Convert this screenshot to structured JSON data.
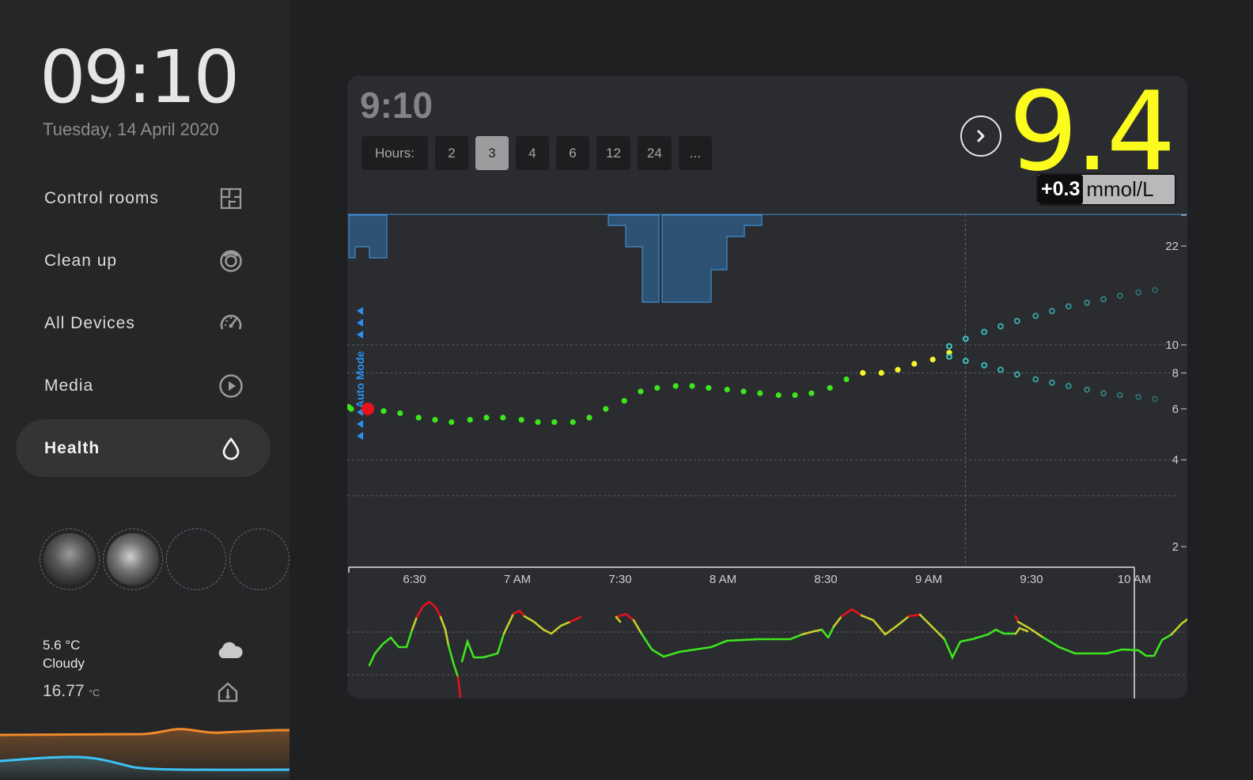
{
  "sidebar": {
    "clock": "09:10",
    "date": "Tuesday, 14 April 2020",
    "items": [
      {
        "label": "Control rooms",
        "icon": "floorplan-icon"
      },
      {
        "label": "Clean up",
        "icon": "robot-vacuum-icon"
      },
      {
        "label": "All Devices",
        "icon": "gauge-icon"
      },
      {
        "label": "Media",
        "icon": "play-icon"
      },
      {
        "label": "Health",
        "icon": "drop-icon",
        "active": true
      }
    ],
    "weather": {
      "temp": "5.6 °C",
      "condition": "Cloudy",
      "indoor": "16.77",
      "indoor_unit": "°C"
    }
  },
  "card": {
    "time": "9:10",
    "hours_label": "Hours:",
    "hours": [
      "2",
      "3",
      "4",
      "6",
      "12",
      "24",
      "..."
    ],
    "selected_hours": "3",
    "value": "9.4",
    "delta": "+0.3",
    "unit": "mmol/L",
    "auto_mode": "Auto Mode",
    "colors": {
      "value": "#fbfb1e",
      "in_range": "#3ee61e",
      "high": "#f5f52a",
      "forecast": "#3ad6d6",
      "basal": "#2d5273",
      "alert": "#e8121b"
    }
  },
  "chart_data": {
    "type": "scatter",
    "y_ticks": [
      "22",
      "10",
      "8",
      "6",
      "4",
      "2"
    ],
    "x_ticks": [
      "6:30",
      "7 AM",
      "7:30",
      "8 AM",
      "8:30",
      "9 AM",
      "9:30",
      "10 AM"
    ],
    "series": [
      {
        "name": "",
        "x": [
          6.1,
          6.18,
          6.27,
          6.35,
          6.43,
          6.52,
          6.6,
          6.68,
          6.77,
          6.85,
          6.93,
          7.02,
          7.1,
          7.18,
          7.27,
          7.35,
          7.43,
          7.52,
          7.6,
          7.68,
          7.77,
          7.85,
          7.93,
          8.02,
          8.1,
          8.18,
          8.27,
          8.35,
          8.43,
          8.52,
          8.6,
          8.68,
          8.77,
          8.85,
          8.93,
          9.02,
          9.1
        ],
        "y": [
          6.0,
          6.1,
          6.1,
          5.9,
          5.8,
          5.6,
          5.5,
          5.4,
          5.5,
          5.6,
          5.6,
          5.5,
          5.4,
          5.4,
          5.4,
          5.6,
          6.0,
          6.4,
          6.9,
          7.1,
          7.2,
          7.2,
          7.1,
          7.0,
          6.9,
          6.8,
          6.7,
          6.7,
          6.8,
          7.1,
          7.6,
          8.0,
          8.0,
          8.2,
          8.6,
          8.9,
          9.4
        ]
      },
      {
        "name": "",
        "x": [
          9.1,
          9.18,
          9.27,
          9.35,
          9.43,
          9.52,
          9.6,
          9.68,
          9.77,
          9.85,
          9.93,
          10.02,
          10.1
        ],
        "y": [
          9.9,
          10.5,
          11.1,
          11.6,
          12.1,
          12.6,
          13.1,
          13.6,
          14.0,
          14.4,
          14.8,
          15.2,
          15.5
        ]
      },
      {
        "name": "",
        "x": [
          9.1,
          9.18,
          9.27,
          9.35,
          9.43,
          9.52,
          9.6,
          9.68,
          9.77,
          9.85,
          9.93,
          10.02,
          10.1
        ],
        "y": [
          9.1,
          8.8,
          8.5,
          8.2,
          7.9,
          7.6,
          7.4,
          7.2,
          7.0,
          6.8,
          6.7,
          6.6,
          6.5
        ]
      }
    ],
    "ylim": [
      1.5,
      28
    ],
    "y_scale": "log"
  }
}
